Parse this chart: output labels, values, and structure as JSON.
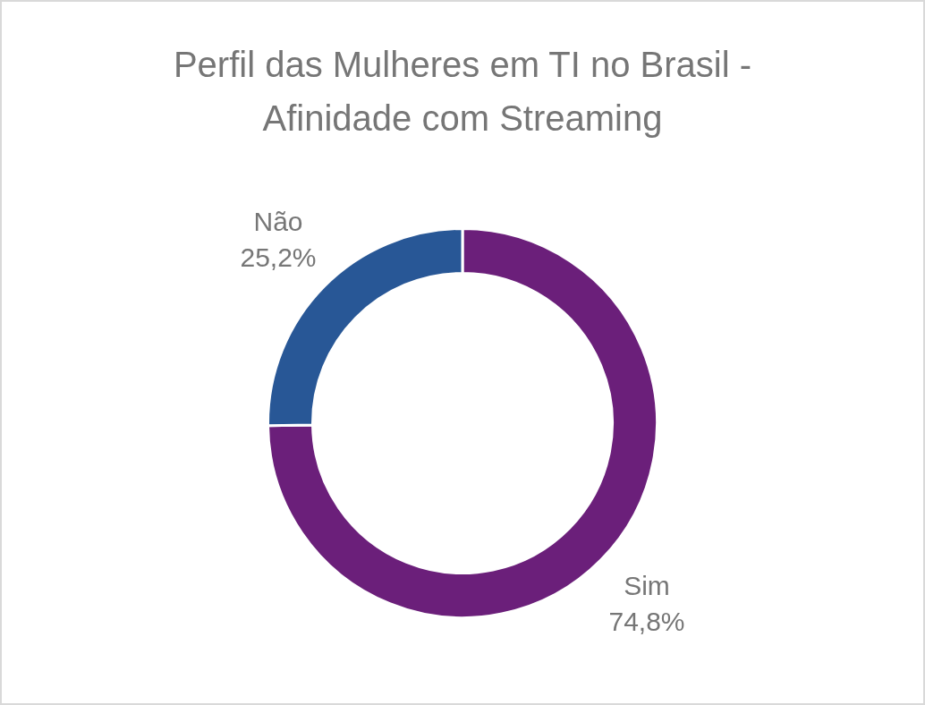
{
  "chart_data": {
    "type": "donut",
    "title": "Perfil das Mulheres em TI no Brasil - Afinidade com Streaming",
    "categories": [
      "Sim",
      "Não"
    ],
    "values": [
      74.8,
      25.2
    ],
    "colors": [
      "#6b1f7a",
      "#285796"
    ],
    "value_labels": [
      "74,8%",
      "25,2%"
    ],
    "legend": false
  }
}
